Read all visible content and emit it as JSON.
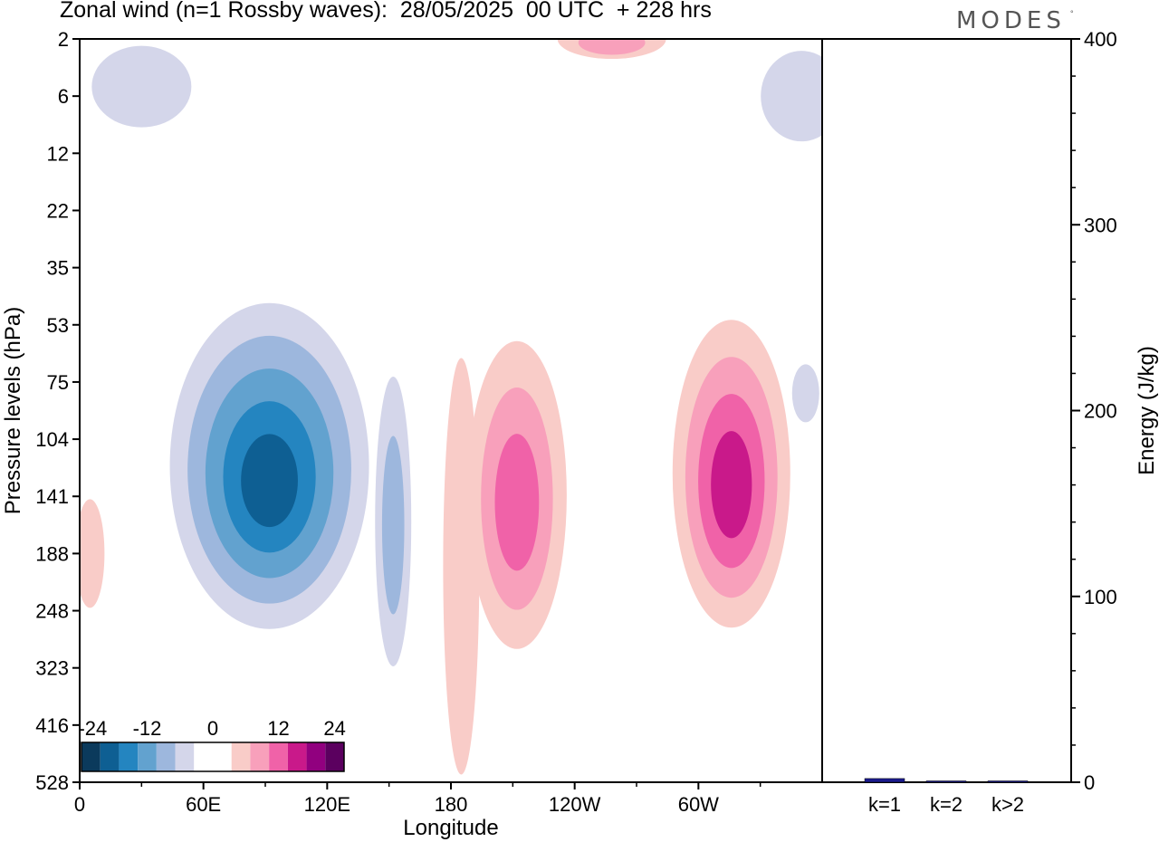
{
  "title": "Zonal wind (n=1 Rossby waves):  28/05/2025  00 UTC  + 228 hrs",
  "logo": "MODES",
  "logo_mark": "°",
  "colors": {
    "neg": [
      "#0b3a5c",
      "#0e5f93",
      "#2485c0",
      "#62a2cf",
      "#9db7dd",
      "#d4d6ea"
    ],
    "zero": "#ffffff",
    "pos": [
      "#f9ccc8",
      "#f8a0bb",
      "#f062a8",
      "#c9198a",
      "#91007f",
      "#5b005f"
    ],
    "energy_bar": "#1a1a8c"
  },
  "chart_data": [
    {
      "type": "heatmap",
      "title": "Zonal wind (n=1 Rossby waves):  28/05/2025  00 UTC  + 228 hrs",
      "xlabel": "Longitude",
      "ylabel": "Pressure levels (hPa)",
      "x_ticks": [
        "0",
        "60E",
        "120E",
        "180",
        "120W",
        "60W"
      ],
      "y_ticks": [
        "2",
        "6",
        "12",
        "22",
        "35",
        "53",
        "75",
        "104",
        "141",
        "188",
        "248",
        "323",
        "416",
        "528"
      ],
      "x_range_deg": [
        0,
        360
      ],
      "colorbar": {
        "tick_labels": [
          "-24",
          "-12",
          "0",
          "12",
          "24"
        ],
        "tick_values": [
          -24,
          -12,
          0,
          12,
          24
        ],
        "levels": [
          -30,
          -25,
          -20,
          -15,
          -10,
          -5,
          0,
          5,
          10,
          15,
          20,
          25,
          30
        ]
      },
      "features": [
        {
          "sign": "negative",
          "center_lon": 92,
          "center_hPa": 120,
          "min_value": -27
        },
        {
          "sign": "negative",
          "center_lon": 152,
          "center_hPa": 160,
          "min_value": -10
        },
        {
          "sign": "negative",
          "center_lon": 30,
          "center_hPa": 5,
          "min_value": -5
        },
        {
          "sign": "negative",
          "center_lon": 350,
          "center_hPa": 6,
          "min_value": -5
        },
        {
          "sign": "negative",
          "center_lon": 352,
          "center_hPa": 80,
          "min_value": -5
        },
        {
          "sign": "positive",
          "center_lon": 316,
          "center_hPa": 125,
          "min_value": 22
        },
        {
          "sign": "positive",
          "center_lon": 212,
          "center_hPa": 140,
          "min_value": 16
        },
        {
          "sign": "positive",
          "center_lon": 185,
          "center_hPa": 200,
          "min_value": 5
        },
        {
          "sign": "positive",
          "center_lon": 5,
          "center_hPa": 188,
          "min_value": 5
        },
        {
          "sign": "positive",
          "center_lon": 258,
          "center_hPa": 2,
          "min_value": 10
        }
      ]
    },
    {
      "type": "bar",
      "categories": [
        "k=1",
        "k=2",
        "k>2"
      ],
      "values": [
        2,
        0,
        0.5
      ],
      "ylabel": "Energy (J/kg)",
      "ylim": [
        0,
        400
      ],
      "y_ticks": [
        "0",
        "100",
        "200",
        "300",
        "400"
      ]
    }
  ]
}
